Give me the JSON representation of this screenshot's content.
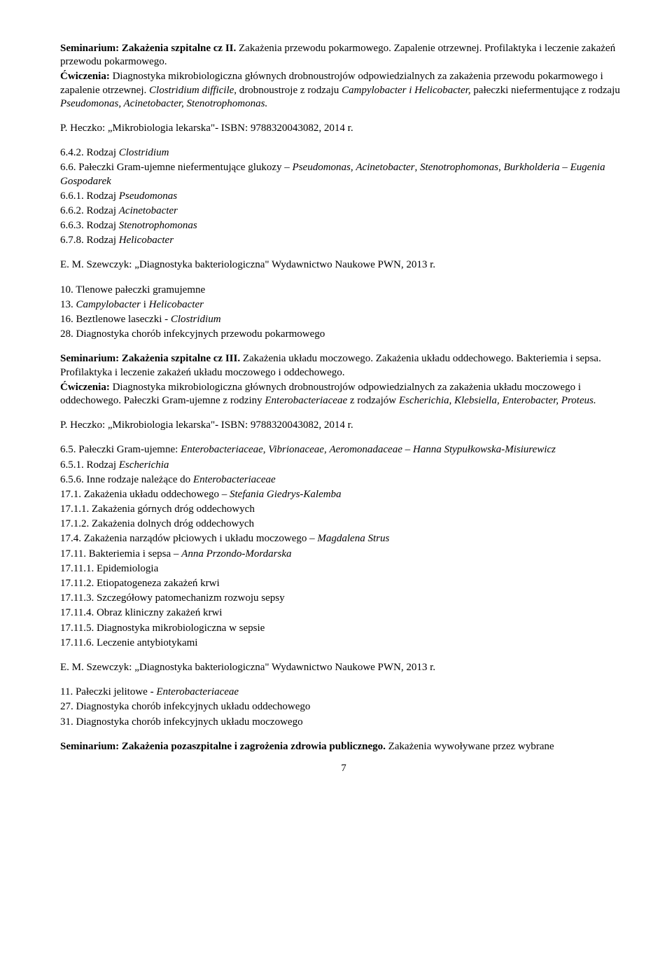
{
  "sec1": {
    "title_b": "Seminarium: Zakażenia szpitalne cz II.",
    "title_rest": " Zakażenia przewodu pokarmowego. Zapalenie otrzewnej. Profilaktyka i leczenie zakażeń przewodu pokarmowego.",
    "cw_b": "Ćwiczenia:",
    "cw_txt1": " Diagnostyka mikrobiologiczna głównych drobnoustrojów odpowiedzialnych za zakażenia przewodu pokarmowego i zapalenie otrzewnej. ",
    "cw_i1": "Clostridium difficile",
    "cw_txt2": ", drobnoustroje z rodzaju ",
    "cw_i2": "Campylobacter i Helicobacter,",
    "cw_txt3": " pałeczki niefermentujące z rodzaju ",
    "cw_i3": "Pseudomonas, Acinetobacter, Stenotrophomonas."
  },
  "ref1": "P. Heczko: „Mikrobiologia lekarska\"- ISBN: 9788320043082, 2014 r.",
  "list1": {
    "a_pre": "6.4.2. Rodzaj ",
    "a_i": "Clostridium",
    "b_pre": "6.6. Pałeczki Gram-ujemne niefermentujące glukozy – ",
    "b_i1": "Pseudomonas",
    "b_mid1": ", ",
    "b_i2": "Acinetobacter",
    "b_mid2": ", ",
    "b_i3": "Stenotrophomonas",
    "b_mid3": ", ",
    "b_i4": "Burkholderia – Eugenia Gospodarek",
    "c_pre": "6.6.1. Rodzaj ",
    "c_i": "Pseudomonas",
    "d_pre": "6.6.2. Rodzaj ",
    "d_i": "Acinetobacter",
    "e_pre": "6.6.3. Rodzaj ",
    "e_i": "Stenotrophomonas",
    "f_pre": "6.7.8. Rodzaj ",
    "f_i": "Helicobacter"
  },
  "ref2": "E. M. Szewczyk: „Diagnostyka bakteriologiczna\" Wydawnictwo Naukowe PWN, 2013 r.",
  "list2": {
    "a": "10. Tlenowe pałeczki gramujemne",
    "b_pre": "13. ",
    "b_i1": "Campylobacter",
    "b_mid": " i ",
    "b_i2": "Helicobacter",
    "c_pre": "16. Beztlenowe laseczki - ",
    "c_i": "Clostridium",
    "d": "28. Diagnostyka chorób infekcyjnych przewodu pokarmowego"
  },
  "sec2": {
    "title_b": "Seminarium: Zakażenia szpitalne cz III.",
    "title_rest": " Zakażenia układu moczowego. Zakażenia układu oddechowego. Bakteriemia i sepsa. Profilaktyka i leczenie zakażeń układu moczowego i oddechowego.",
    "cw_b": "Ćwiczenia:",
    "cw_txt1": " Diagnostyka mikrobiologiczna głównych drobnoustrojów odpowiedzialnych za zakażenia układu moczowego i oddechowego.  Pałeczki Gram-ujemne z rodziny ",
    "cw_i1": "Enterobacteriaceae ",
    "cw_txt2": "z rodzajów ",
    "cw_i2": "Escherichia, Klebsiella, Enterobacter, Proteus."
  },
  "ref3": "P. Heczko: „Mikrobiologia lekarska\"- ISBN: 9788320043082, 2014 r.",
  "list3": {
    "a_pre": "6.5. Pałeczki Gram-ujemne: ",
    "a_i": "Enterobacteriaceae",
    "a_m1": ", ",
    "a_i2": "Vibrionaceae",
    "a_m2": ", ",
    "a_i3": "Aeromonadaceae – Hanna Stypułkowska-Misiurewicz",
    "b_pre": "6.5.1. Rodzaj ",
    "b_i": "Escherichia",
    "c_pre": "6.5.6. Inne rodzaje należące do ",
    "c_i": "Enterobacteriaceae",
    "d_pre": "17.1. Zakażenia układu oddechowego – ",
    "d_i": "Stefania Giedrys-Kalemba",
    "e": "17.1.1. Zakażenia górnych dróg oddechowych",
    "f": "17.1.2. Zakażenia dolnych dróg oddechowych",
    "g_pre": "17.4. Zakażenia narządów płciowych i układu moczowego – ",
    "g_i": "Magdalena Strus",
    "h_pre": "17.11. Bakteriemia i sepsa – ",
    "h_i": "Anna Przondo-Mordarska",
    "i": "17.11.1. Epidemiologia",
    "j": "17.11.2. Etiopatogeneza zakażeń krwi",
    "k": "17.11.3. Szczegółowy patomechanizm rozwoju sepsy",
    "l": "17.11.4. Obraz kliniczny zakażeń krwi",
    "m": "17.11.5. Diagnostyka mikrobiologiczna w sepsie",
    "n": "17.11.6. Leczenie antybiotykami"
  },
  "ref4": "E. M. Szewczyk: „Diagnostyka bakteriologiczna\" Wydawnictwo Naukowe PWN, 2013 r.",
  "list4": {
    "a_pre": "11. Pałeczki jelitowe - ",
    "a_i": "Enterobacteriaceae",
    "b": "27. Diagnostyka chorób infekcyjnych układu oddechowego",
    "c": "31. Diagnostyka chorób infekcyjnych układu moczowego"
  },
  "sec3": {
    "title_b": "Seminarium: Zakażenia pozaszpitalne i zagrożenia zdrowia publicznego.",
    "title_rest": " Zakażenia wywoływane przez wybrane"
  },
  "pagenum": "7"
}
